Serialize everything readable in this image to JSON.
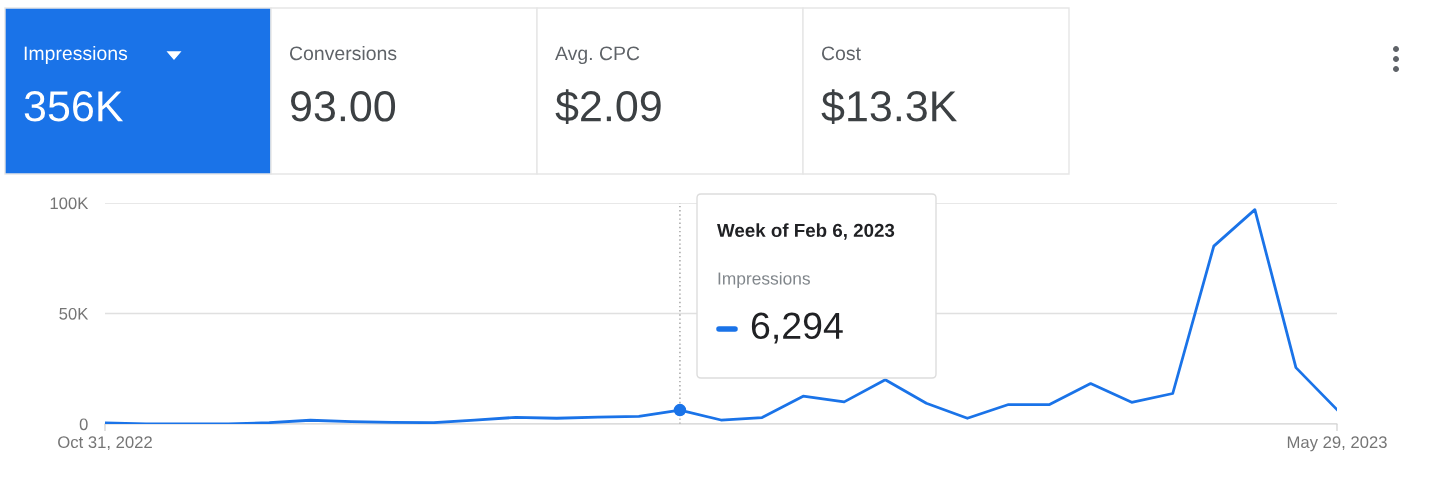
{
  "chart_data": [
    {
      "type": "other",
      "annotations": [
        "Impressions",
        "356K",
        "Conversions",
        "93.00",
        "Avg. CPC",
        "$2.09",
        "Cost",
        "$13.3K"
      ],
      "colors": [
        "#1a73e8",
        "#ffffff",
        "#ffffff",
        "#ffffff"
      ]
    },
    {
      "type": "line",
      "x": [
        "2022-10-31",
        "2022-11-07",
        "2022-11-14",
        "2022-11-21",
        "2022-11-28",
        "2022-12-05",
        "2022-12-12",
        "2022-12-19",
        "2022-12-26",
        "2023-01-02",
        "2023-01-09",
        "2023-01-16",
        "2023-01-23",
        "2023-01-30",
        "2023-02-06",
        "2023-02-13",
        "2023-02-20",
        "2023-02-27",
        "2023-03-06",
        "2023-03-13",
        "2023-03-20",
        "2023-03-27",
        "2023-04-03",
        "2023-04-10",
        "2023-04-17",
        "2023-04-24",
        "2023-05-01",
        "2023-05-08",
        "2023-05-15",
        "2023-05-22",
        "2023-05-29"
      ],
      "series": [
        {
          "color": "#1a73e8",
          "values": [
            500,
            0,
            0,
            0,
            600,
            1700,
            1100,
            700,
            600,
            1800,
            3000,
            2600,
            3100,
            3500,
            6294,
            1800,
            2900,
            12600,
            10000,
            20000,
            9400,
            2600,
            8800,
            8800,
            18300,
            9800,
            13800,
            80500,
            97000,
            25500,
            6500
          ]
        }
      ],
      "annotations": [
        "Week of Feb 6, 2023",
        "Impressions",
        {
          "text": "6,294",
          "x": "2023-02-06",
          "y": 6294
        }
      ],
      "ref_lines": [
        {
          "axis": "x",
          "value": "2023-02-06",
          "color": "#9e9e9e",
          "line_style": "dotted"
        }
      ],
      "xlim": [
        "2022-10-31",
        "2023-05-29"
      ],
      "xticks": [
        {
          "value": "2022-10-31",
          "label": "Oct 31, 2022"
        },
        {
          "value": "2023-05-29",
          "label": "May 29, 2023"
        }
      ],
      "ylim": [
        0,
        100000
      ],
      "yticks": [
        {
          "value": 0,
          "label": "0"
        },
        {
          "value": 50000,
          "label": "50K"
        },
        {
          "value": 100000,
          "label": "100K"
        }
      ],
      "grid": "y",
      "marker": "none",
      "line_style": "solid"
    }
  ]
}
